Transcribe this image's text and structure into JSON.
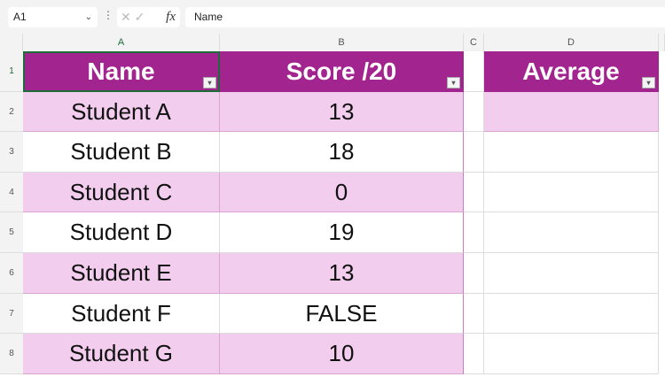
{
  "formula_bar": {
    "name_box": "A1",
    "formula": "Name",
    "fx_label": "fx"
  },
  "columns": [
    "A",
    "B",
    "C",
    "D"
  ],
  "rows": [
    "1",
    "2",
    "3",
    "4",
    "5",
    "6",
    "7",
    "8"
  ],
  "table": {
    "headers": [
      "Name",
      "Score /20"
    ],
    "data": [
      [
        "Student A",
        "13"
      ],
      [
        "Student B",
        "18"
      ],
      [
        "Student C",
        "0"
      ],
      [
        "Student D",
        "19"
      ],
      [
        "Student E",
        "13"
      ],
      [
        "Student F",
        "FALSE"
      ],
      [
        "Student G",
        "10"
      ]
    ]
  },
  "average": {
    "header": "Average",
    "value": ""
  },
  "colors": {
    "header": "#a2258f",
    "band": "#f2cdee",
    "selection": "#1e6b3a"
  }
}
